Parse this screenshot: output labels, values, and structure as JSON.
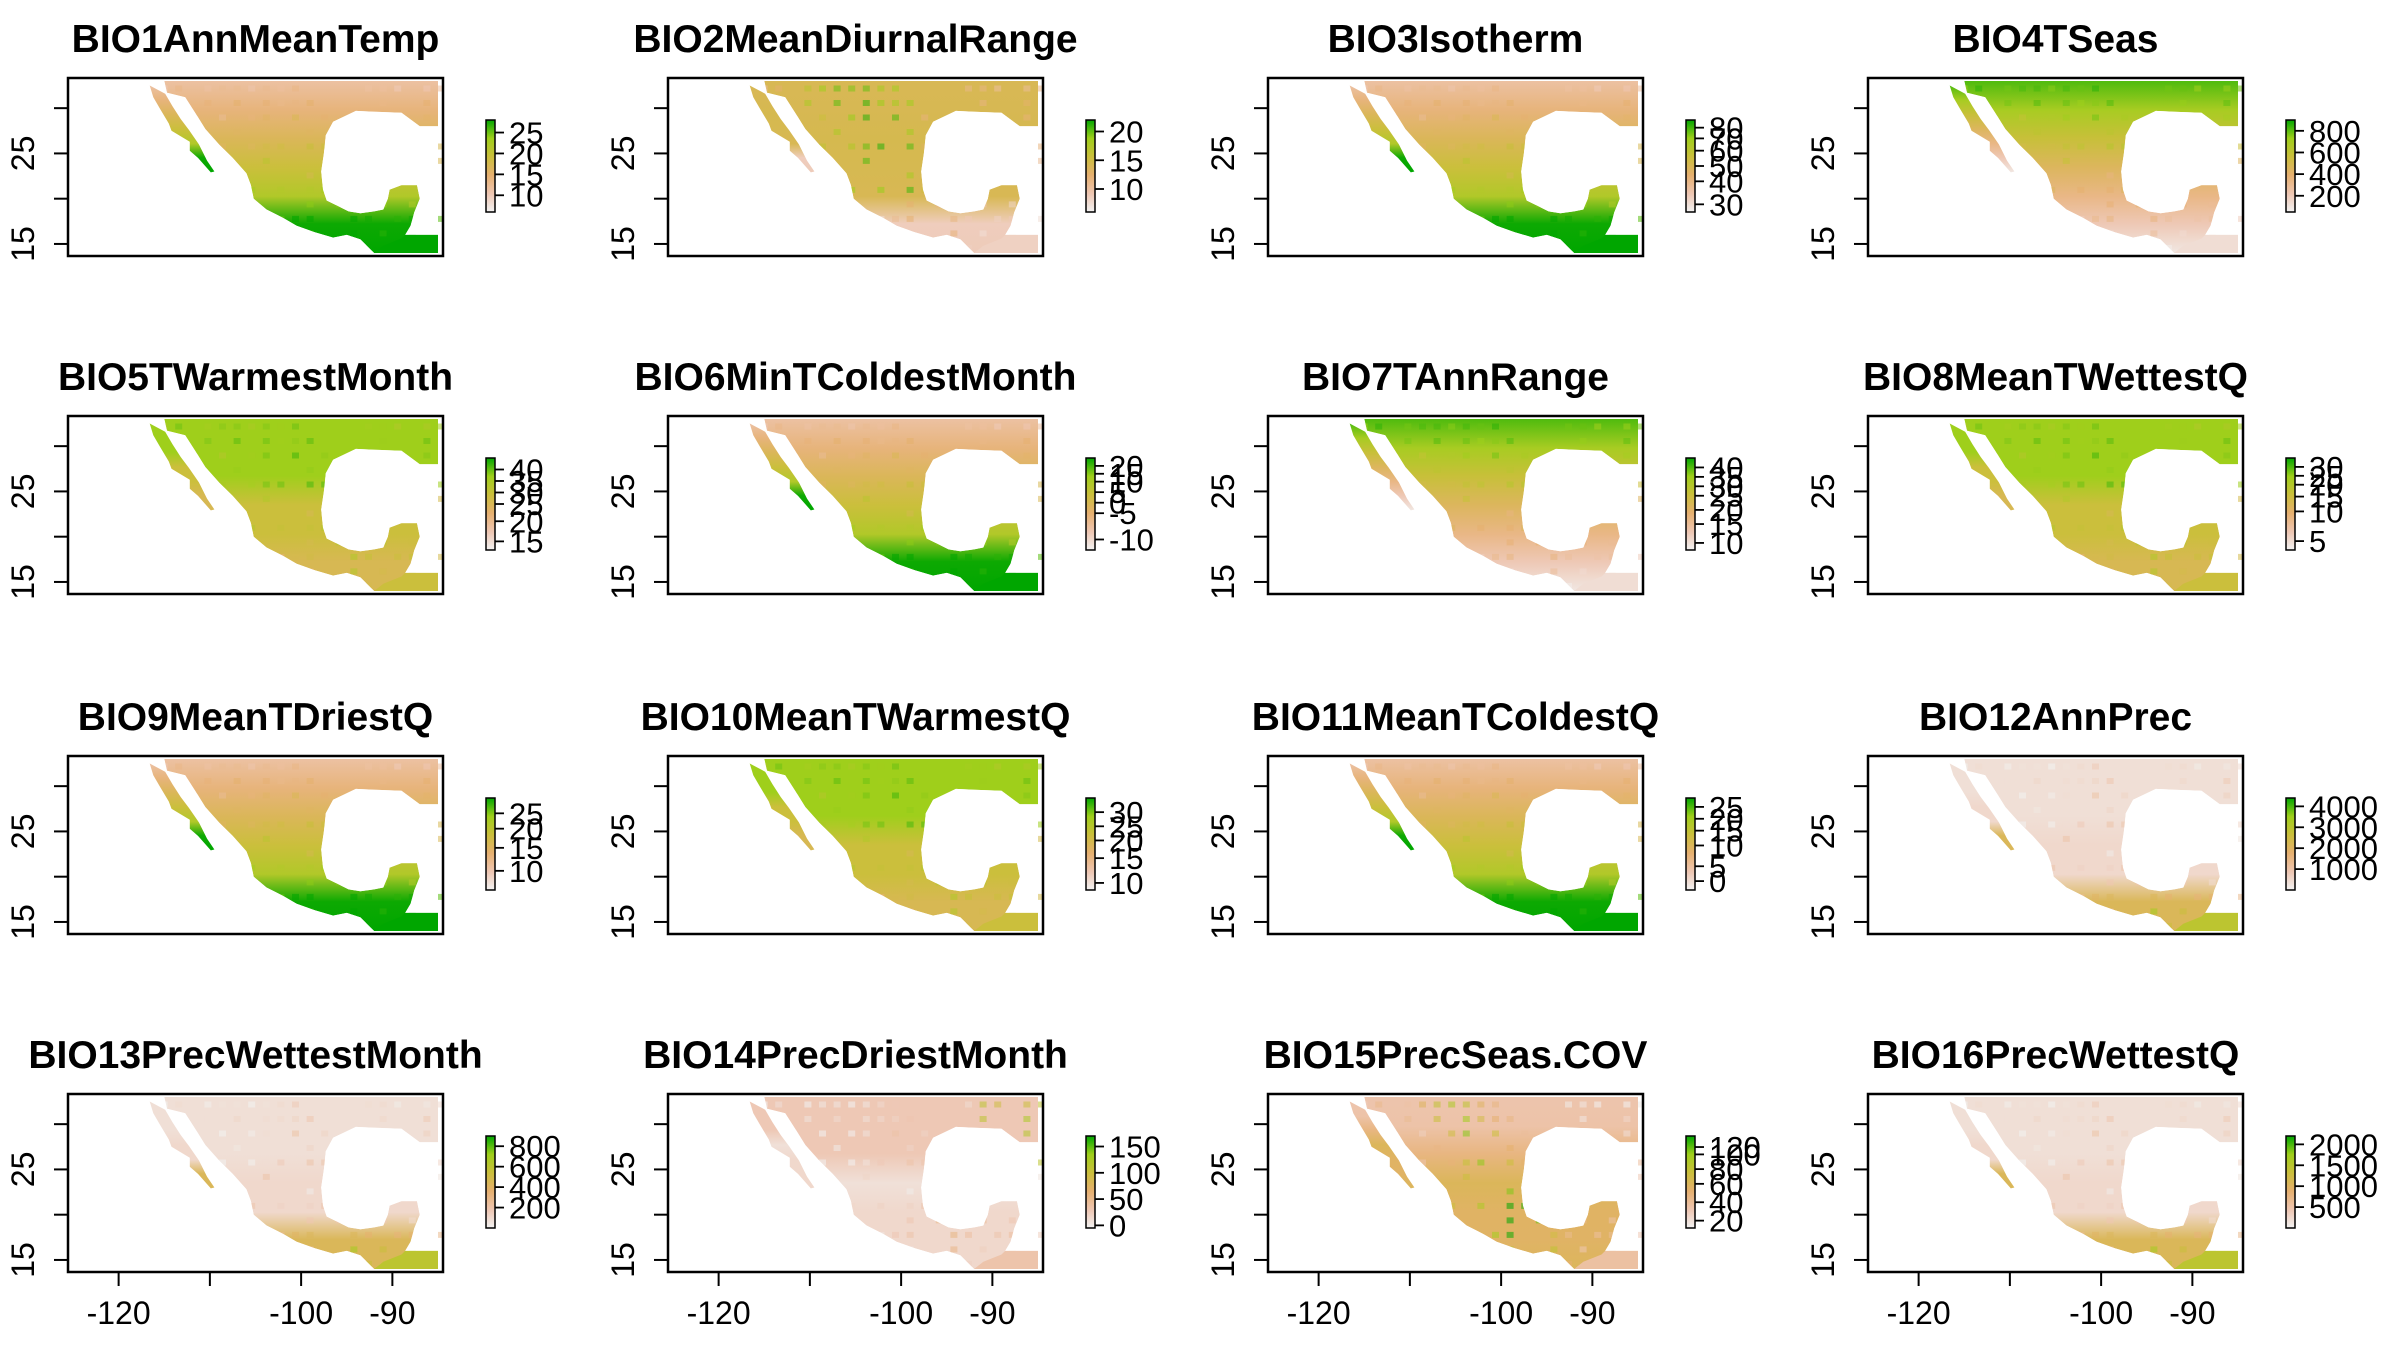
{
  "figure": {
    "type": "raster-panel-grid",
    "rows": 4,
    "cols": 4
  },
  "palette": {
    "ramp": [
      "#f2f2f2",
      "#eec6b2",
      "#e6b070",
      "#cbbf3c",
      "#9fcf1b",
      "#00a600"
    ],
    "frame": "#000000",
    "land_base": "#eeb98f"
  },
  "axes": {
    "xlim": [
      -125,
      -85
    ],
    "ylim": [
      14,
      33
    ],
    "x_ticks": [
      -120,
      -110,
      -100,
      -90
    ],
    "x_tick_labels": [
      "-120",
      "",
      "-100",
      "-90"
    ],
    "y_ticks": [
      15,
      20,
      25,
      30
    ],
    "y_tick_labels": [
      "15",
      "",
      "25",
      ""
    ]
  },
  "chart_data": [
    {
      "type": "heatmap",
      "title": "BIO1AnnMeanTemp",
      "legend_ticks": [
        "25",
        "20",
        "15",
        "10"
      ],
      "legend_values": [
        25,
        20,
        15,
        10
      ],
      "legend_range": [
        6,
        28
      ],
      "pattern": "south-high"
    },
    {
      "type": "heatmap",
      "title": "BIO2MeanDiurnalRange",
      "legend_ticks": [
        "20",
        "15",
        "10"
      ],
      "legend_values": [
        20,
        15,
        10
      ],
      "legend_range": [
        6,
        22
      ],
      "pattern": "inland-high"
    },
    {
      "type": "heatmap",
      "title": "BIO3Isotherm",
      "legend_ticks": [
        "80",
        "70",
        "60",
        "50",
        "40",
        "30"
      ],
      "legend_values": [
        80,
        73,
        65,
        55,
        45,
        30
      ],
      "legend_range": [
        25,
        85
      ],
      "pattern": "south-high"
    },
    {
      "type": "heatmap",
      "title": "BIO4TSeas",
      "legend_ticks": [
        "800",
        "600",
        "400",
        "200"
      ],
      "legend_values": [
        800,
        600,
        400,
        200
      ],
      "legend_range": [
        50,
        900
      ],
      "pattern": "north-high"
    },
    {
      "type": "heatmap",
      "title": "BIO5TWarmestMonth",
      "legend_ticks": [
        "40",
        "35",
        "30",
        "25",
        "20",
        "15"
      ],
      "legend_values": [
        40,
        36,
        32,
        28,
        22,
        15
      ],
      "legend_range": [
        12,
        44
      ],
      "pattern": "uniform-high"
    },
    {
      "type": "heatmap",
      "title": "BIO6MinTColdestMonth",
      "legend_ticks": [
        "20",
        "15",
        "10",
        "5",
        "0",
        "-5",
        "-10"
      ],
      "legend_values": [
        20,
        17,
        14,
        10,
        6,
        2,
        -8
      ],
      "legend_range": [
        -12,
        23
      ],
      "pattern": "south-high"
    },
    {
      "type": "heatmap",
      "title": "BIO7TAnnRange",
      "legend_ticks": [
        "40",
        "35",
        "30",
        "25",
        "20",
        "15",
        "10"
      ],
      "legend_values": [
        40,
        36,
        32,
        28,
        22,
        16,
        8
      ],
      "legend_range": [
        5,
        44
      ],
      "pattern": "north-high"
    },
    {
      "type": "heatmap",
      "title": "BIO8MeanTWettestQ",
      "legend_ticks": [
        "30",
        "25",
        "20",
        "15",
        "10",
        "5"
      ],
      "legend_values": [
        30,
        27,
        24,
        20,
        15,
        5
      ],
      "legend_range": [
        2,
        33
      ],
      "pattern": "uniform-high"
    },
    {
      "type": "heatmap",
      "title": "BIO9MeanTDriestQ",
      "legend_ticks": [
        "25",
        "20",
        "15",
        "10"
      ],
      "legend_values": [
        25,
        21,
        16,
        10
      ],
      "legend_range": [
        5,
        29
      ],
      "pattern": "south-high"
    },
    {
      "type": "heatmap",
      "title": "BIO10MeanTWarmestQ",
      "legend_ticks": [
        "30",
        "25",
        "20",
        "15",
        "10"
      ],
      "legend_values": [
        30,
        26,
        22,
        17,
        10
      ],
      "legend_range": [
        8,
        34
      ],
      "pattern": "uniform-high"
    },
    {
      "type": "heatmap",
      "title": "BIO11MeanTColdestQ",
      "legend_ticks": [
        "25",
        "20",
        "15",
        "10",
        "5",
        "0"
      ],
      "legend_values": [
        25,
        21,
        17,
        12,
        5,
        0
      ],
      "legend_range": [
        -3,
        28
      ],
      "pattern": "south-high"
    },
    {
      "type": "heatmap",
      "title": "BIO12AnnPrec",
      "legend_ticks": [
        "4000",
        "3000",
        "2000",
        "1000"
      ],
      "legend_values": [
        4000,
        3000,
        2000,
        1000
      ],
      "legend_range": [
        0,
        4400
      ],
      "pattern": "wet-south"
    },
    {
      "type": "heatmap",
      "title": "BIO13PrecWettestMonth",
      "legend_ticks": [
        "800",
        "600",
        "400",
        "200"
      ],
      "legend_values": [
        800,
        600,
        400,
        200
      ],
      "legend_range": [
        0,
        900
      ],
      "pattern": "wet-south"
    },
    {
      "type": "heatmap",
      "title": "BIO14PrecDriestMonth",
      "legend_ticks": [
        "150",
        "100",
        "50",
        "0"
      ],
      "legend_values": [
        150,
        100,
        50,
        0
      ],
      "legend_range": [
        -5,
        170
      ],
      "pattern": "wet-east"
    },
    {
      "type": "heatmap",
      "title": "BIO15PrecSeas.COV",
      "legend_ticks": [
        "120",
        "100",
        "80",
        "60",
        "40",
        "20"
      ],
      "legend_values": [
        120,
        110,
        90,
        70,
        45,
        20
      ],
      "legend_range": [
        10,
        135
      ],
      "pattern": "west-high"
    },
    {
      "type": "heatmap",
      "title": "BIO16PrecWettestQ",
      "legend_ticks": [
        "2000",
        "1500",
        "1000",
        "500"
      ],
      "legend_values": [
        2000,
        1500,
        1000,
        500
      ],
      "legend_range": [
        0,
        2200
      ],
      "pattern": "wet-south"
    }
  ]
}
